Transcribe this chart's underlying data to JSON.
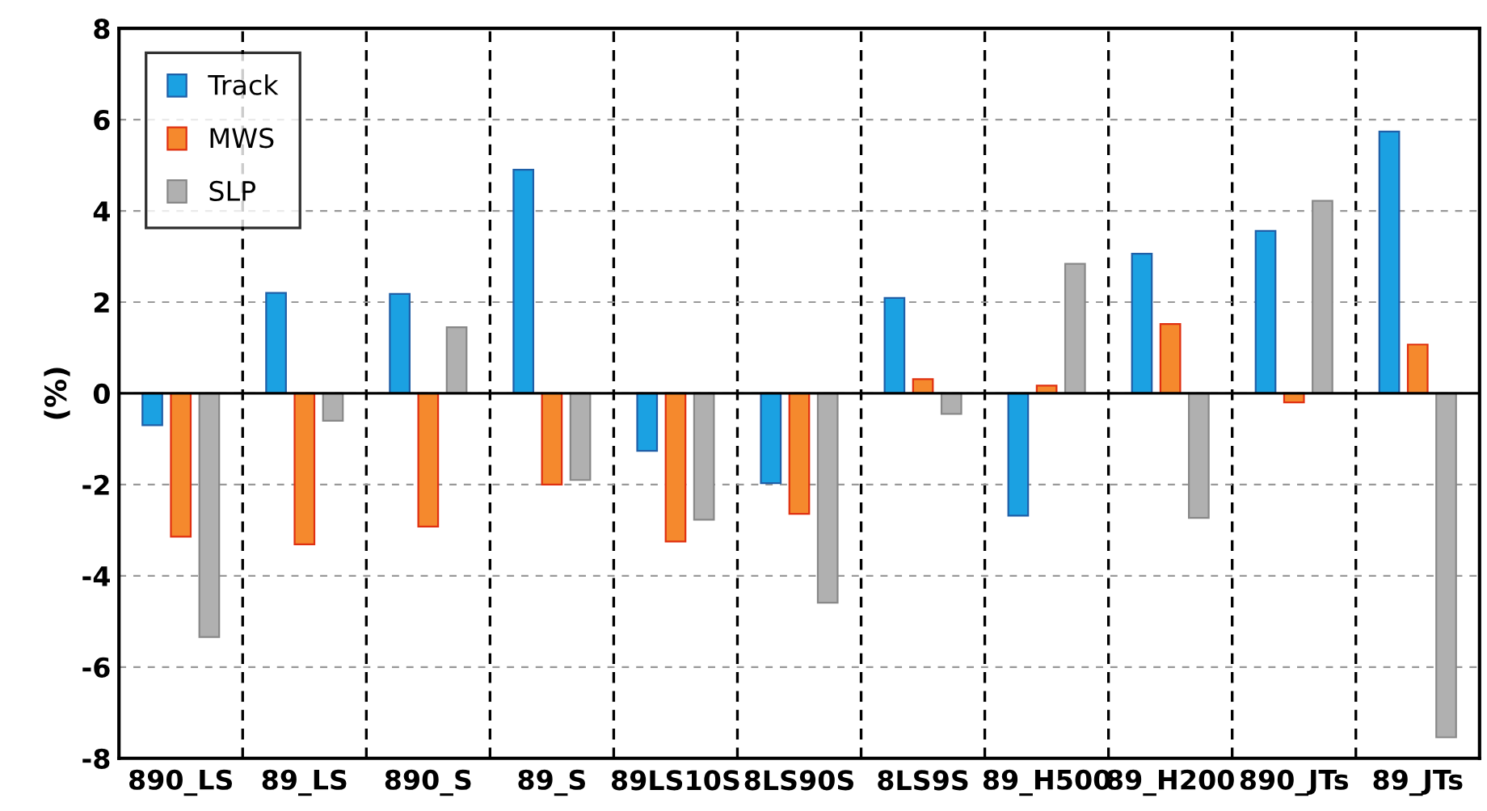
{
  "chart_data": {
    "type": "bar",
    "ylabel": "(%)",
    "categories": [
      "890_LS",
      "89_LS",
      "890_S",
      "89_S",
      "89LS10S",
      "8LS90S",
      "8LS9S",
      "89_H500",
      "89_H200",
      "890_JTs",
      "89_JTs"
    ],
    "series": [
      {
        "name": "Track",
        "color": "#1ba1e2",
        "values": [
          -0.7,
          2.2,
          2.18,
          4.9,
          -1.26,
          -1.97,
          2.09,
          -2.68,
          3.06,
          3.56,
          5.74
        ]
      },
      {
        "name": "MWS",
        "color": "#f5892d",
        "values": [
          -3.14,
          -3.31,
          -2.92,
          -2.0,
          -3.25,
          -2.64,
          0.31,
          0.17,
          1.52,
          -0.2,
          1.07
        ]
      },
      {
        "name": "SLP",
        "color": "#b0b0b0",
        "values": [
          -5.34,
          -0.6,
          1.45,
          -1.9,
          -2.77,
          -4.59,
          -0.45,
          2.84,
          -2.73,
          4.22,
          -7.54
        ]
      }
    ],
    "ylim": [
      -8,
      8
    ],
    "yticks": [
      -8,
      -6,
      -4,
      -2,
      0,
      2,
      4,
      6,
      8
    ],
    "grid": true,
    "legend": "top left"
  }
}
